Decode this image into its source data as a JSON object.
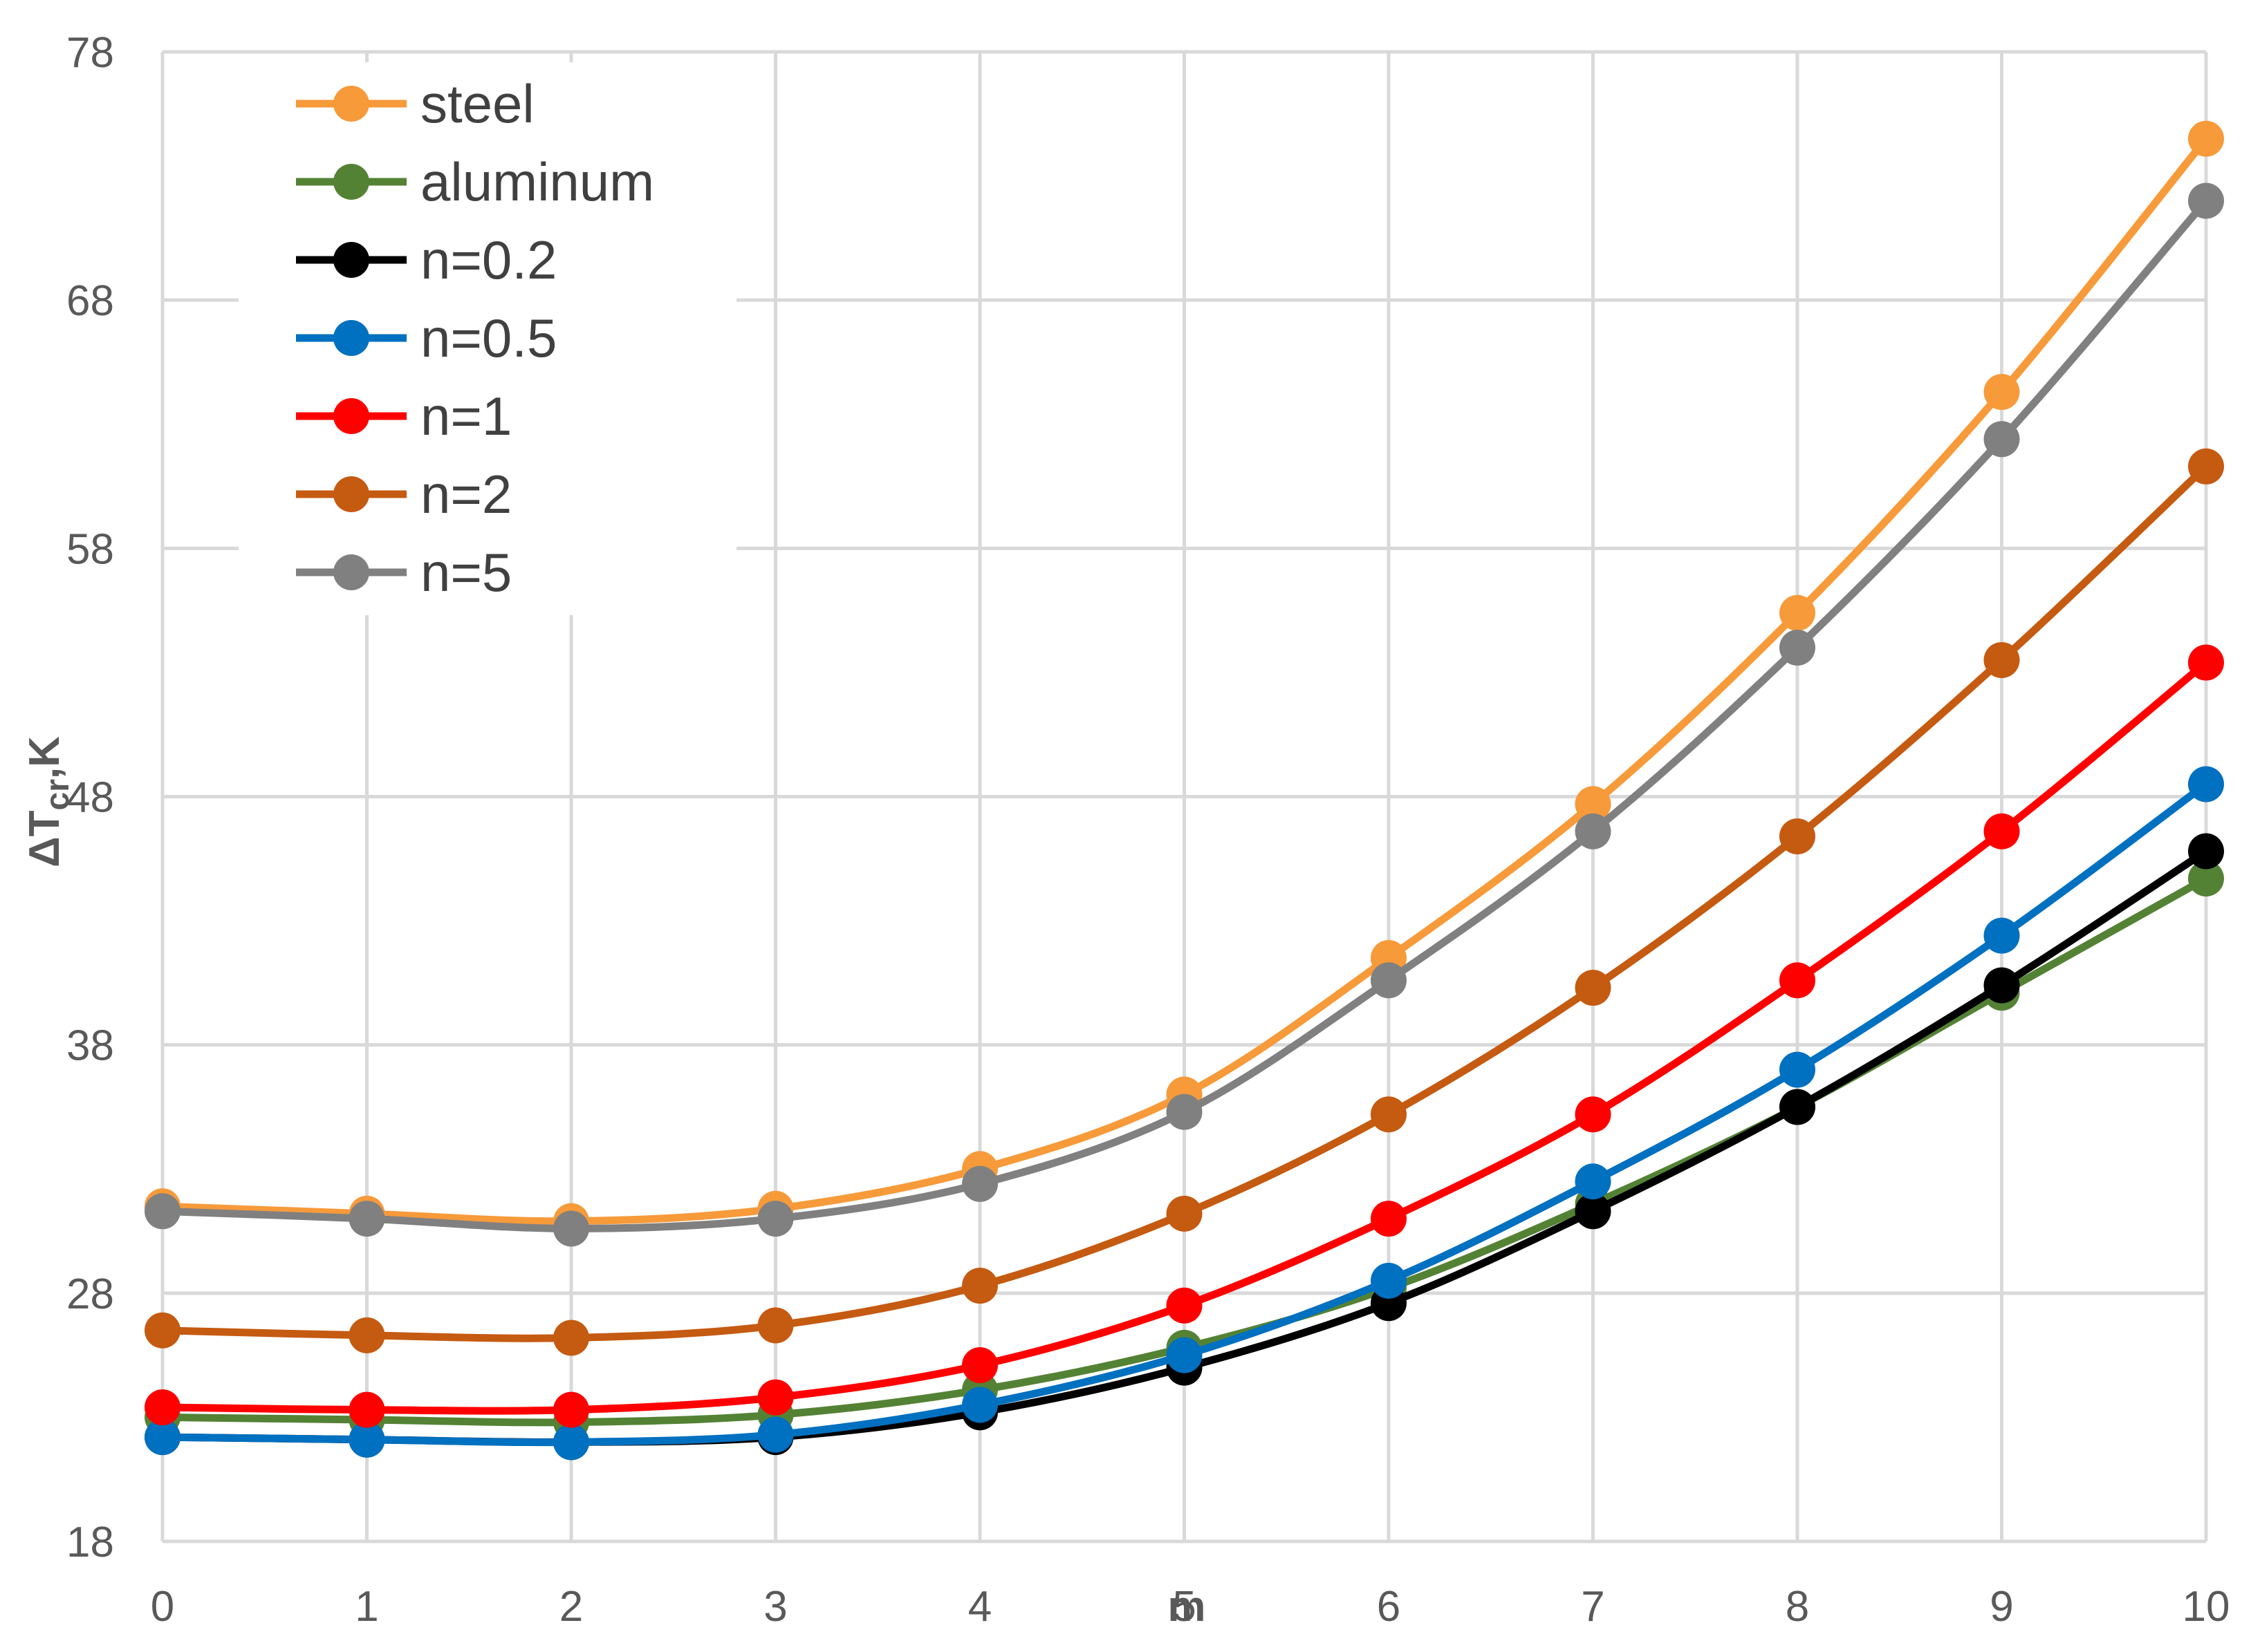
{
  "chart_data": {
    "type": "line",
    "title": "",
    "xlabel": "m",
    "ylabel": "ΔT_cr,K",
    "ylabel_main": "ΔT",
    "ylabel_sub": "cr",
    "ylabel_unit": ",K",
    "x": [
      0,
      1,
      2,
      3,
      4,
      5,
      6,
      7,
      8,
      9,
      10
    ],
    "xlim": [
      0,
      10
    ],
    "ylim": [
      18,
      78
    ],
    "x_ticks": [
      "0",
      "1",
      "2",
      "3",
      "4",
      "5",
      "6",
      "7",
      "8",
      "9",
      "10"
    ],
    "y_ticks": [
      "18",
      "28",
      "38",
      "48",
      "58",
      "68",
      "78"
    ],
    "grid": true,
    "legend_position": "top-left",
    "series": [
      {
        "name": "steel",
        "color": "#F79A3A",
        "values": [
          31.5,
          31.2,
          30.9,
          31.4,
          33.0,
          36.0,
          41.5,
          47.7,
          55.4,
          64.3,
          74.5
        ]
      },
      {
        "name": "aluminum",
        "color": "#548235",
        "values": [
          23.0,
          22.9,
          22.8,
          23.1,
          24.1,
          25.8,
          28.2,
          31.6,
          35.5,
          40.1,
          44.7
        ]
      },
      {
        "name": "n=0.2",
        "color": "#000000",
        "values": [
          22.2,
          22.1,
          22.0,
          22.2,
          23.2,
          25.0,
          27.6,
          31.3,
          35.5,
          40.4,
          45.8
        ]
      },
      {
        "name": "n=0.5",
        "color": "#0070C0",
        "values": [
          22.2,
          22.1,
          22.0,
          22.3,
          23.5,
          25.5,
          28.5,
          32.5,
          37.0,
          42.4,
          48.5
        ]
      },
      {
        "name": "n=1",
        "color": "#FF0000",
        "values": [
          23.4,
          23.3,
          23.3,
          23.8,
          25.1,
          27.5,
          31.0,
          35.2,
          40.6,
          46.6,
          53.4
        ]
      },
      {
        "name": "n=2",
        "color": "#C55A11",
        "values": [
          26.5,
          26.3,
          26.2,
          26.7,
          28.3,
          31.2,
          35.2,
          40.3,
          46.4,
          53.5,
          61.3
        ]
      },
      {
        "name": "n=5",
        "color": "#808080",
        "values": [
          31.3,
          31.0,
          30.6,
          31.0,
          32.4,
          35.3,
          40.6,
          46.6,
          54.0,
          62.4,
          72.0
        ]
      }
    ]
  }
}
